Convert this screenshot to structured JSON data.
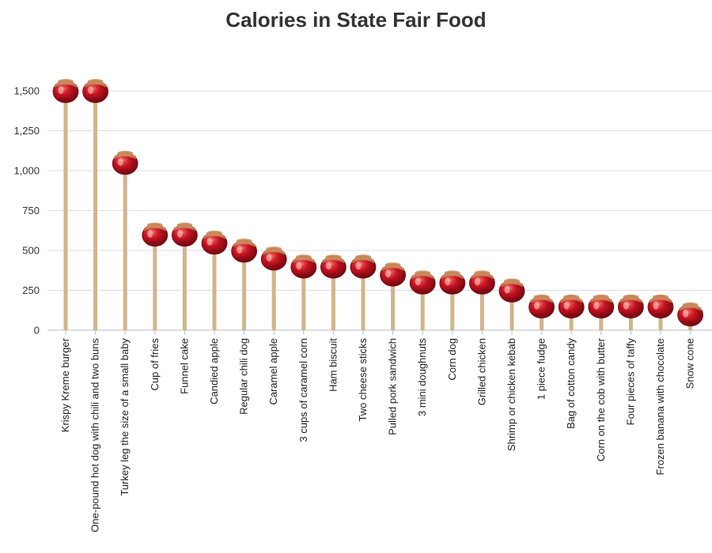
{
  "chart_data": {
    "type": "lollipop",
    "title": "Calories in State Fair Food",
    "xlabel": "",
    "ylabel": "",
    "ylim": [
      0,
      1600
    ],
    "yticks": [
      0,
      250,
      500,
      750,
      1000,
      1250,
      1500
    ],
    "ytick_labels": [
      "0",
      "250",
      "500",
      "750",
      "1,000",
      "1,250",
      "1,500"
    ],
    "grid": true,
    "categories": [
      "Krispy Kreme burger",
      "One-pound hot dog with chili and two buns",
      "Turkey leg the size of a small baby",
      "Cup of fries",
      "Funnel cake",
      "Candied apple",
      "Regular chili dog",
      "Caramel apple",
      "3 cups of caramel corn",
      "Ham biscuit",
      "Two cheese sticks",
      "Pulled pork sandwich",
      "3 mini doughnuts",
      "Corn dog",
      "Grilled chicken",
      "Shrimp or chicken kebab",
      "1 piece fudge",
      "Bag of cotton candy",
      "Corn on the cob with butter",
      "Four pieces of taffy",
      "Frozen banana with chocolate",
      "Snow cone"
    ],
    "values": [
      1500,
      1500,
      1050,
      600,
      600,
      550,
      500,
      450,
      400,
      400,
      400,
      350,
      300,
      300,
      300,
      250,
      150,
      150,
      150,
      150,
      150,
      100
    ],
    "colors": {
      "stick": "#d2b48c",
      "apple": "#c0111f",
      "apple_dark": "#7a0a12",
      "apple_highlight": "#e86a6a",
      "caramel": "#c98a5a",
      "grid": "#dcdce8",
      "axis": "#bbbbcc"
    }
  }
}
